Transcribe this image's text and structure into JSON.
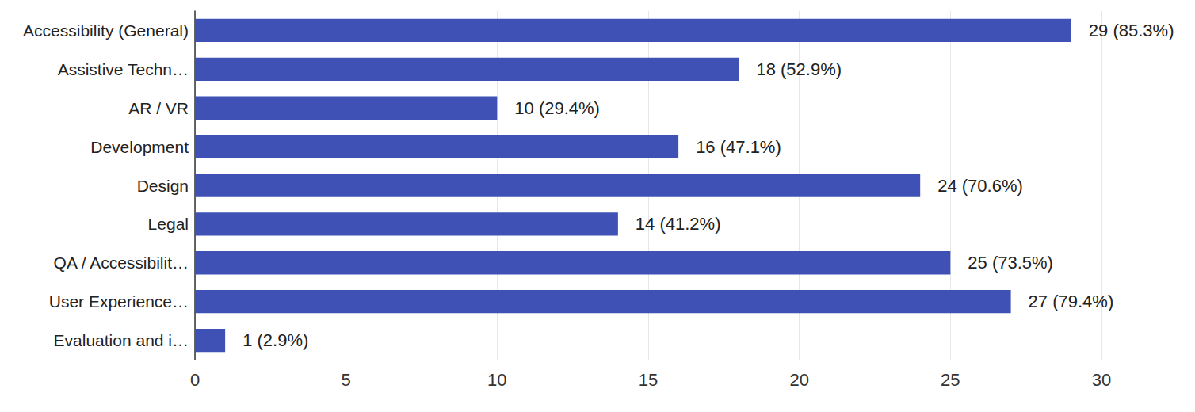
{
  "chart_data": {
    "type": "bar",
    "orientation": "horizontal",
    "categories": [
      "Accessibility (General)",
      "Assistive Techn…",
      "AR / VR",
      "Development",
      "Design",
      "Legal",
      "QA / Accessibilit…",
      "User Experience…",
      "Evaluation and i…"
    ],
    "values": [
      29,
      18,
      10,
      16,
      24,
      14,
      25,
      27,
      1
    ],
    "value_labels": [
      "29 (85.3%)",
      "18 (52.9%)",
      "10 (29.4%)",
      "16 (47.1%)",
      "24 (70.6%)",
      "14 (41.2%)",
      "25 (73.5%)",
      "27 (79.4%)",
      "1 (2.9%)"
    ],
    "color": "#3f51b5",
    "xlim": [
      0,
      30
    ],
    "xticks": [
      0,
      5,
      10,
      15,
      20,
      25,
      30
    ],
    "grid": true,
    "data_labels": true
  }
}
